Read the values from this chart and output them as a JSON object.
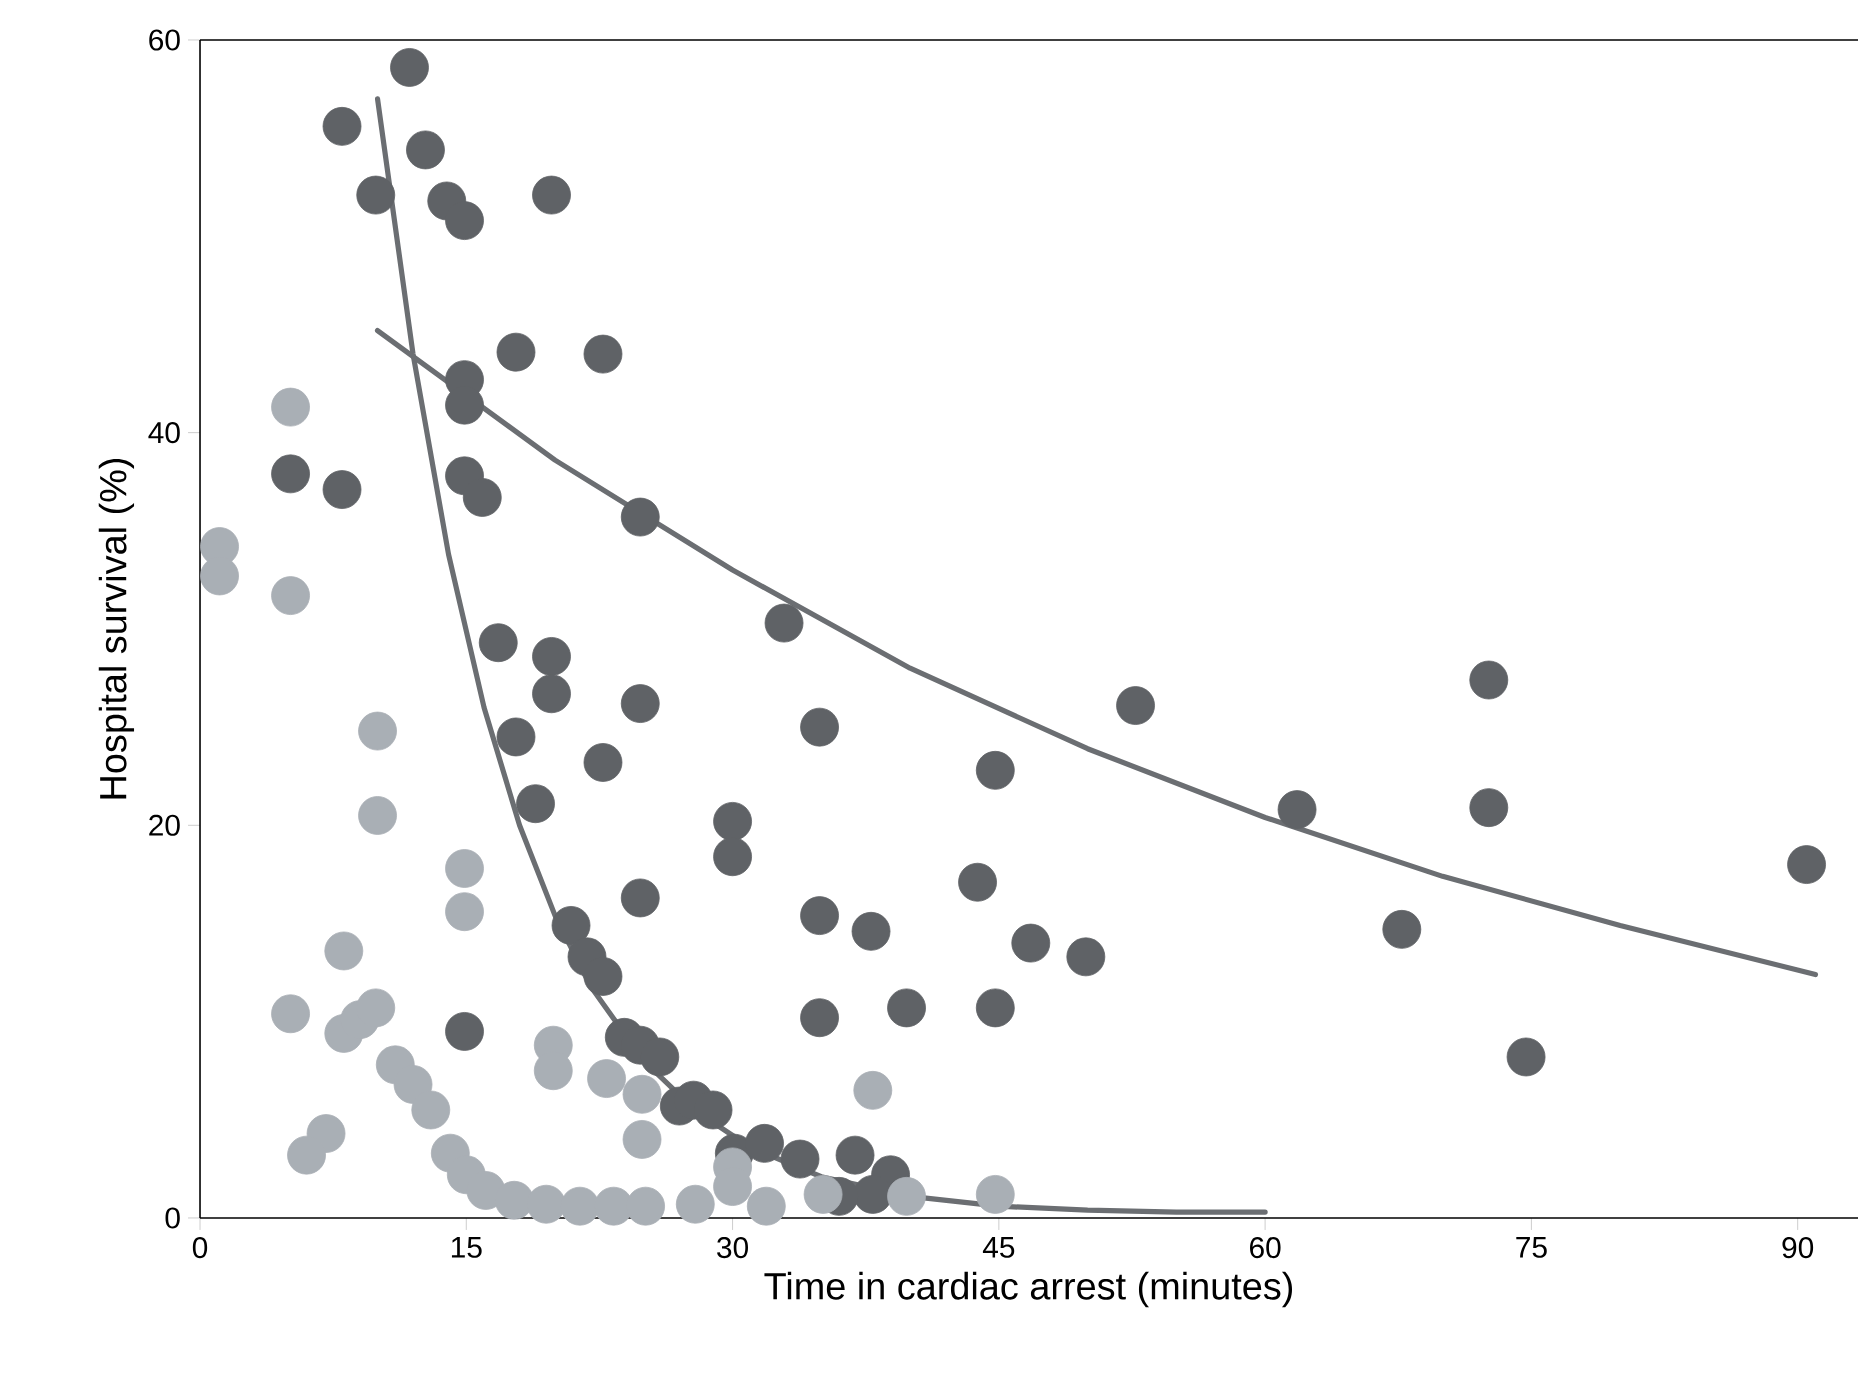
{
  "chart_data": {
    "type": "scatter",
    "xlabel": "Time in cardiac arrest (minutes)",
    "ylabel": "Hospital survival (%)",
    "xlim": [
      0,
      93.4
    ],
    "ylim": [
      0,
      60
    ],
    "xticks": [
      0,
      15,
      30,
      45,
      60,
      75,
      90
    ],
    "yticks": [
      0,
      20,
      40,
      60
    ],
    "grid": false,
    "series": [
      {
        "marker": "circle",
        "color": "#5f6266",
        "x": [
          8.0,
          11.8,
          12.7,
          9.9,
          13.9,
          14.9,
          19.8,
          14.9,
          14.9,
          17.8,
          22.7,
          5.1,
          8.0,
          14.9,
          15.9,
          24.8,
          16.8,
          19.8,
          19.8,
          24.8,
          17.8,
          22.7,
          18.9,
          30.0,
          30.0,
          24.8,
          20.9,
          21.8,
          22.7,
          14.9,
          23.9,
          24.8,
          25.9,
          27.0,
          27.8,
          28.9,
          30.1,
          31.8,
          32.9,
          34.9,
          52.7,
          44.8,
          61.8,
          43.8,
          34.9,
          37.8,
          46.8,
          49.9,
          34.9,
          39.8,
          44.8,
          36.9,
          38.9,
          37.9,
          36.0,
          33.8,
          72.6,
          72.6,
          67.7,
          74.7,
          90.5
        ],
        "values": [
          55.6,
          58.6,
          54.4,
          52.1,
          51.8,
          50.8,
          52.1,
          42.7,
          41.4,
          44.1,
          44.0,
          37.9,
          37.1,
          37.8,
          36.7,
          35.7,
          29.3,
          28.6,
          26.7,
          26.2,
          24.5,
          23.2,
          21.1,
          20.2,
          18.4,
          16.3,
          14.9,
          13.3,
          12.3,
          9.5,
          9.2,
          8.8,
          8.2,
          5.7,
          6.0,
          5.5,
          3.3,
          3.8,
          30.3,
          25.0,
          26.1,
          22.8,
          20.8,
          17.1,
          15.4,
          14.6,
          14.0,
          13.3,
          10.2,
          10.7,
          10.7,
          3.2,
          2.2,
          1.2,
          1.1,
          3.0,
          27.4,
          20.9,
          14.7,
          8.2,
          18.0
        ]
      },
      {
        "marker": "circle",
        "color": "#a9afb5",
        "x": [
          1.1,
          1.1,
          5.1,
          5.1,
          10.0,
          10.0,
          14.9,
          14.9,
          8.1,
          5.1,
          8.1,
          9.0,
          9.9,
          11.0,
          12.0,
          13.0,
          7.1,
          6.0,
          14.1,
          15.0,
          16.1,
          17.7,
          19.5,
          21.4,
          23.3,
          25.1,
          19.9,
          19.9,
          22.9,
          24.9,
          24.9,
          27.9,
          30.0,
          30.0,
          31.9,
          37.9,
          35.1,
          39.8,
          44.8
        ],
        "values": [
          34.2,
          32.7,
          41.3,
          31.7,
          24.8,
          20.5,
          17.8,
          15.6,
          13.6,
          10.4,
          9.4,
          10.1,
          10.7,
          7.8,
          6.8,
          5.5,
          4.3,
          3.2,
          3.3,
          2.2,
          1.4,
          0.9,
          0.7,
          0.6,
          0.6,
          0.6,
          8.8,
          7.5,
          7.1,
          6.3,
          4.0,
          0.7,
          2.6,
          1.6,
          0.6,
          6.5,
          1.2,
          1.1,
          1.2
        ]
      },
      {
        "type": "line",
        "marker": "none",
        "color": "#6b6e72",
        "x": [
          10,
          12,
          14,
          16,
          18,
          20,
          22,
          25,
          28,
          31,
          35,
          40,
          45,
          50,
          55,
          60
        ],
        "values": [
          57,
          44,
          33.8,
          26,
          20,
          15.4,
          11.8,
          8.0,
          5.4,
          3.6,
          2.1,
          1.1,
          0.6,
          0.4,
          0.3,
          0.3
        ]
      },
      {
        "type": "line",
        "marker": "none",
        "color": "#6b6e72",
        "x": [
          10,
          20,
          30,
          40,
          50,
          60,
          70,
          80,
          91
        ],
        "values": [
          45.2,
          38.6,
          33.0,
          28.0,
          23.9,
          20.4,
          17.4,
          14.9,
          12.4
        ]
      }
    ]
  }
}
